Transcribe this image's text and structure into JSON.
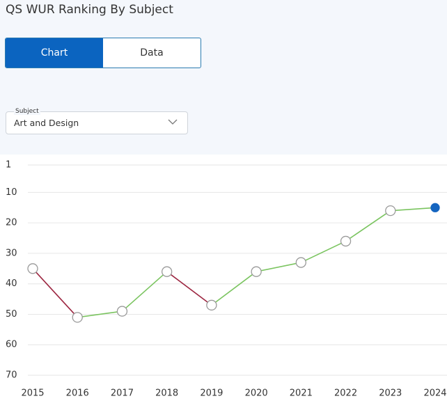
{
  "header": {
    "title": "QS WUR Ranking By Subject"
  },
  "tabs": [
    {
      "label": "Chart",
      "active": true
    },
    {
      "label": "Data",
      "active": false
    }
  ],
  "dropdown": {
    "label": "Subject",
    "value": "Art and Design"
  },
  "chart_data": {
    "type": "line",
    "categories": [
      "2015",
      "2016",
      "2017",
      "2018",
      "2019",
      "2020",
      "2021",
      "2022",
      "2023",
      "2024"
    ],
    "values": [
      35,
      51,
      49,
      36,
      47,
      36,
      33,
      26,
      16,
      15
    ],
    "ylim": [
      1,
      70
    ],
    "y_inverted": true,
    "yticks": [
      1,
      10,
      20,
      30,
      40,
      50,
      60,
      70
    ],
    "grid": true,
    "improve_color": "#7ac45f",
    "decline_color": "#9c2540",
    "marker_fill": "#ffffff",
    "marker_stroke": "#9a9a9a",
    "last_marker_color": "#1565c0"
  }
}
